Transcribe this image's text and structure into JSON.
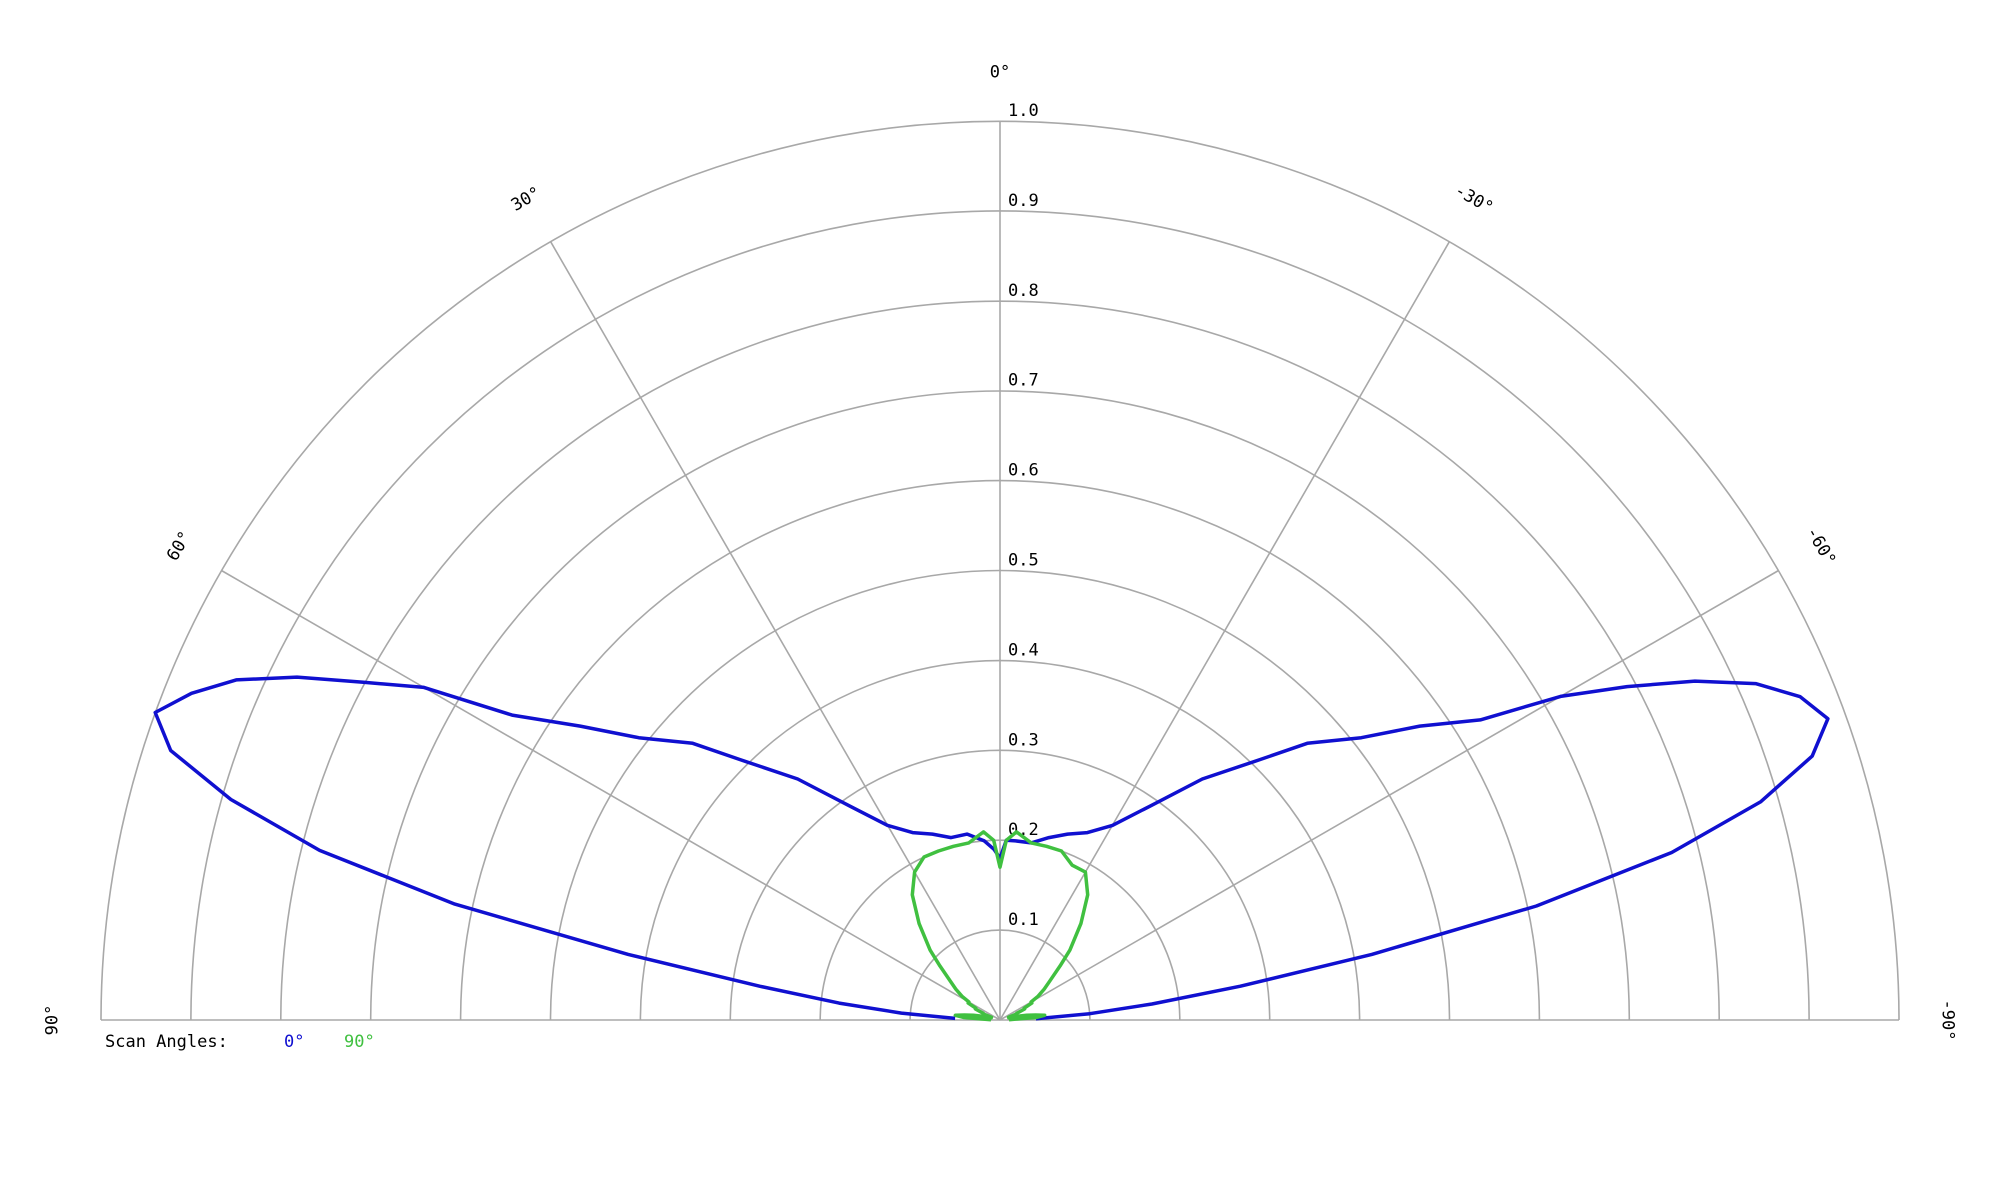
{
  "chart_data": {
    "type": "polar",
    "x": [
      88,
      86,
      84,
      82,
      80,
      78,
      76,
      74,
      72,
      70,
      68,
      66,
      64,
      62,
      60,
      58,
      55,
      52,
      48,
      45,
      40,
      35,
      30,
      25,
      20,
      15,
      10,
      5,
      2,
      0,
      -2,
      -5,
      -10,
      -15,
      -20,
      -25,
      -30,
      -35,
      -40,
      -45,
      -48,
      -52,
      -55,
      -58,
      -60,
      -62,
      -64,
      -66,
      -68,
      -70,
      -72,
      -74,
      -76,
      -78,
      -80,
      -82,
      -84,
      -86,
      -88
    ],
    "series": [
      {
        "name": "0°",
        "color": "#1010d0",
        "values": [
          0.05,
          0.11,
          0.18,
          0.27,
          0.42,
          0.62,
          0.78,
          0.89,
          0.97,
          1.0,
          0.97,
          0.93,
          0.87,
          0.8,
          0.74,
          0.64,
          0.57,
          0.51,
          0.46,
          0.41,
          0.35,
          0.29,
          0.25,
          0.23,
          0.22,
          0.21,
          0.21,
          0.2,
          0.19,
          0.18,
          0.2,
          0.2,
          0.2,
          0.21,
          0.22,
          0.23,
          0.25,
          0.29,
          0.35,
          0.41,
          0.46,
          0.51,
          0.57,
          0.63,
          0.72,
          0.79,
          0.86,
          0.92,
          0.96,
          0.98,
          0.95,
          0.88,
          0.77,
          0.61,
          0.42,
          0.27,
          0.17,
          0.1,
          0.04
        ]
      },
      {
        "name": "90°",
        "color": "#40c040",
        "values": [
          0.01,
          0.04,
          0.05,
          0.04,
          0.03,
          0.02,
          0.01,
          0.01,
          0.01,
          0.02,
          0.02,
          0.03,
          0.03,
          0.04,
          0.04,
          0.05,
          0.06,
          0.07,
          0.09,
          0.11,
          0.14,
          0.17,
          0.19,
          0.2,
          0.2,
          0.2,
          0.2,
          0.21,
          0.2,
          0.17,
          0.2,
          0.21,
          0.2,
          0.2,
          0.2,
          0.19,
          0.19,
          0.17,
          0.14,
          0.11,
          0.09,
          0.07,
          0.06,
          0.05,
          0.04,
          0.04,
          0.03,
          0.03,
          0.02,
          0.02,
          0.01,
          0.01,
          0.01,
          0.02,
          0.03,
          0.04,
          0.05,
          0.04,
          0.01
        ]
      }
    ],
    "legend_title": "Scan Angles:",
    "ylim": [
      0,
      1
    ],
    "yticks": [
      0.1,
      0.2,
      0.3,
      0.4,
      0.5,
      0.6,
      0.7,
      0.8,
      0.9,
      {
        "value": 1,
        "label": "1.0"
      }
    ],
    "xticks": [
      {
        "value": 90,
        "label": "90°"
      },
      {
        "value": 60,
        "label": "60°"
      },
      {
        "value": 30,
        "label": "30°"
      },
      {
        "value": 0,
        "label": "0°"
      },
      {
        "value": -30,
        "label": "-30°"
      },
      {
        "value": -60,
        "label": "-60°"
      },
      {
        "value": -90,
        "label": "-90°"
      }
    ],
    "grid": true
  }
}
